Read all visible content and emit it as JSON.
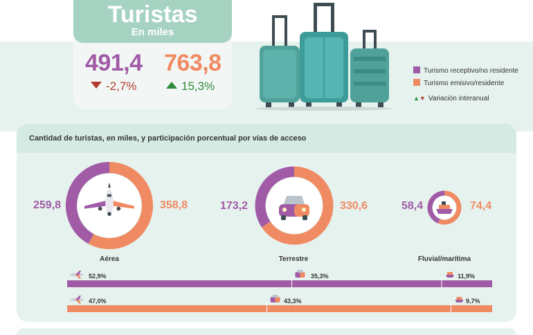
{
  "header": {
    "title": "Turistas",
    "subtitle": "En miles"
  },
  "kpi": {
    "receptivo": {
      "value": "491,4",
      "change": "-2,7%",
      "direction": "down"
    },
    "emisivo": {
      "value": "763,8",
      "change": "15,3%",
      "direction": "up"
    }
  },
  "legend": {
    "receptivo": "Turismo receptivo/no residente",
    "emisivo": "Turismo emisivo/residente",
    "variacion": "Variación interanual"
  },
  "colors": {
    "purple": "#a05aa6",
    "orange": "#f08a63",
    "teal": "#4fa19a",
    "green": "#2e8b3a",
    "red": "#b33a2e"
  },
  "panel": {
    "title": "Cantidad de turistas, en miles, y participación porcentual por vías de acceso"
  },
  "chart_data": [
    {
      "type": "pie",
      "title": "Aérea",
      "icon": "airplane-icon",
      "series": [
        {
          "name": "Turismo receptivo/no residente",
          "value": 259.8,
          "label": "259,8"
        },
        {
          "name": "Turismo emisivo/residente",
          "value": 358.8,
          "label": "358,8"
        }
      ]
    },
    {
      "type": "pie",
      "title": "Terrestre",
      "icon": "car-icon",
      "series": [
        {
          "name": "Turismo receptivo/no residente",
          "value": 173.2,
          "label": "173,2"
        },
        {
          "name": "Turismo emisivo/residente",
          "value": 330.6,
          "label": "330,6"
        }
      ]
    },
    {
      "type": "pie",
      "title": "Fluvial/marítima",
      "icon": "ship-icon",
      "series": [
        {
          "name": "Turismo receptivo/no residente",
          "value": 58.4,
          "label": "58,4"
        },
        {
          "name": "Turismo emisivo/residente",
          "value": 74.4,
          "label": "74,4"
        }
      ]
    },
    {
      "type": "bar",
      "orientation": "horizontal-stacked",
      "categories": [
        "Aérea",
        "Terrestre",
        "Fluvial/marítima"
      ],
      "series": [
        {
          "name": "Turismo receptivo/no residente",
          "values": [
            52.9,
            35.3,
            11.9
          ],
          "labels": [
            "52,9%",
            "35,3%",
            "11,9%"
          ]
        },
        {
          "name": "Turismo emisivo/residente",
          "values": [
            47.0,
            43.3,
            9.7
          ],
          "labels": [
            "47,0%",
            "43,3%",
            "9,7%"
          ]
        }
      ]
    }
  ]
}
